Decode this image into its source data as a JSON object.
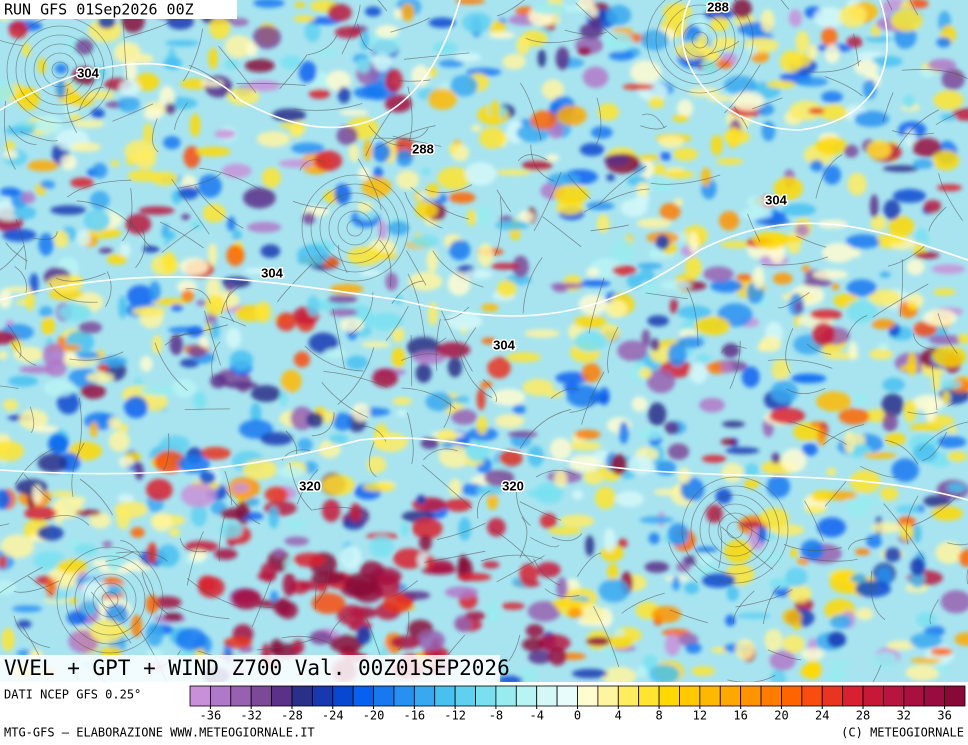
{
  "header": {
    "run": "RUN GFS 01Sep2026 00Z"
  },
  "map": {
    "contour_labels": [
      "288",
      "304",
      "288",
      "304",
      "304",
      "304",
      "320",
      "320"
    ]
  },
  "caption": "VVEL + GPT + WIND Z700 Val. 00Z01SEP2026",
  "legend": {
    "source": "DATI NCEP GFS 0.25°",
    "range": [
      -38,
      38
    ],
    "ticks": [
      -36,
      -32,
      -28,
      -24,
      -20,
      -16,
      -12,
      -8,
      -4,
      0,
      4,
      8,
      12,
      16,
      20,
      24,
      28,
      32,
      36
    ],
    "colors": [
      "#c890d8",
      "#b078c8",
      "#9860b0",
      "#7c4898",
      "#5a3088",
      "#283088",
      "#1838b0",
      "#0848d0",
      "#0860f0",
      "#1878f0",
      "#2890f0",
      "#38a8f0",
      "#48c0f0",
      "#60d0f0",
      "#78e0f0",
      "#98ecf0",
      "#b8f4f4",
      "#d4f8f8",
      "#e8fcfc",
      "#fffcd0",
      "#fff4a0",
      "#ffec60",
      "#ffe430",
      "#ffd800",
      "#ffc800",
      "#ffb800",
      "#ffa800",
      "#ff9400",
      "#ff7c00",
      "#ff6400",
      "#f84c10",
      "#e83420",
      "#d82030",
      "#c81838",
      "#b81440",
      "#a81040",
      "#980c40",
      "#880838"
    ]
  },
  "footer": {
    "left": "MTG-GFS — ELABORAZIONE WWW.METEOGIORNALE.IT",
    "right": "(C) METEOGIORNALE"
  }
}
